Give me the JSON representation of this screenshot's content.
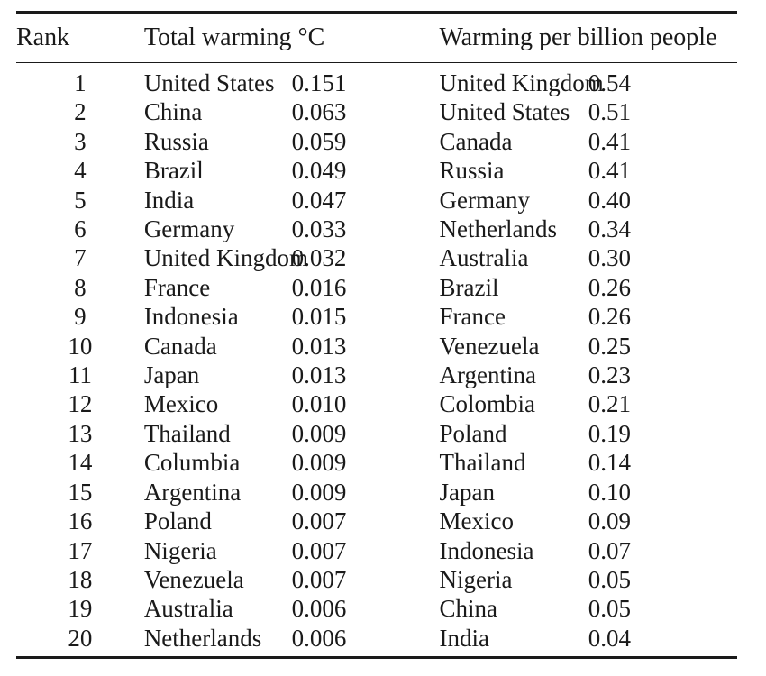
{
  "table": {
    "headers": {
      "rank": "Rank",
      "total_warming": "Total warming °C",
      "per_billion": "Warming per billion people"
    },
    "rows": [
      {
        "rank": "1",
        "total_country": "United States",
        "total_value": "0.151",
        "pc_country": "United Kingdom",
        "pc_value": "0.54"
      },
      {
        "rank": "2",
        "total_country": "China",
        "total_value": "0.063",
        "pc_country": "United States",
        "pc_value": "0.51"
      },
      {
        "rank": "3",
        "total_country": "Russia",
        "total_value": "0.059",
        "pc_country": "Canada",
        "pc_value": "0.41"
      },
      {
        "rank": "4",
        "total_country": "Brazil",
        "total_value": "0.049",
        "pc_country": "Russia",
        "pc_value": "0.41"
      },
      {
        "rank": "5",
        "total_country": "India",
        "total_value": "0.047",
        "pc_country": "Germany",
        "pc_value": "0.40"
      },
      {
        "rank": "6",
        "total_country": "Germany",
        "total_value": "0.033",
        "pc_country": "Netherlands",
        "pc_value": "0.34"
      },
      {
        "rank": "7",
        "total_country": "United Kingdom",
        "total_value": "0.032",
        "pc_country": "Australia",
        "pc_value": "0.30"
      },
      {
        "rank": "8",
        "total_country": "France",
        "total_value": "0.016",
        "pc_country": "Brazil",
        "pc_value": "0.26"
      },
      {
        "rank": "9",
        "total_country": "Indonesia",
        "total_value": "0.015",
        "pc_country": "France",
        "pc_value": "0.26"
      },
      {
        "rank": "10",
        "total_country": "Canada",
        "total_value": "0.013",
        "pc_country": "Venezuela",
        "pc_value": "0.25"
      },
      {
        "rank": "11",
        "total_country": "Japan",
        "total_value": "0.013",
        "pc_country": "Argentina",
        "pc_value": "0.23"
      },
      {
        "rank": "12",
        "total_country": "Mexico",
        "total_value": "0.010",
        "pc_country": "Colombia",
        "pc_value": "0.21"
      },
      {
        "rank": "13",
        "total_country": "Thailand",
        "total_value": "0.009",
        "pc_country": "Poland",
        "pc_value": "0.19"
      },
      {
        "rank": "14",
        "total_country": "Columbia",
        "total_value": "0.009",
        "pc_country": "Thailand",
        "pc_value": "0.14"
      },
      {
        "rank": "15",
        "total_country": "Argentina",
        "total_value": "0.009",
        "pc_country": "Japan",
        "pc_value": "0.10"
      },
      {
        "rank": "16",
        "total_country": "Poland",
        "total_value": "0.007",
        "pc_country": "Mexico",
        "pc_value": "0.09"
      },
      {
        "rank": "17",
        "total_country": "Nigeria",
        "total_value": "0.007",
        "pc_country": "Indonesia",
        "pc_value": "0.07"
      },
      {
        "rank": "18",
        "total_country": "Venezuela",
        "total_value": "0.007",
        "pc_country": "Nigeria",
        "pc_value": "0.05"
      },
      {
        "rank": "19",
        "total_country": "Australia",
        "total_value": "0.006",
        "pc_country": "China",
        "pc_value": "0.05"
      },
      {
        "rank": "20",
        "total_country": "Netherlands",
        "total_value": "0.006",
        "pc_country": "India",
        "pc_value": "0.04"
      }
    ]
  }
}
